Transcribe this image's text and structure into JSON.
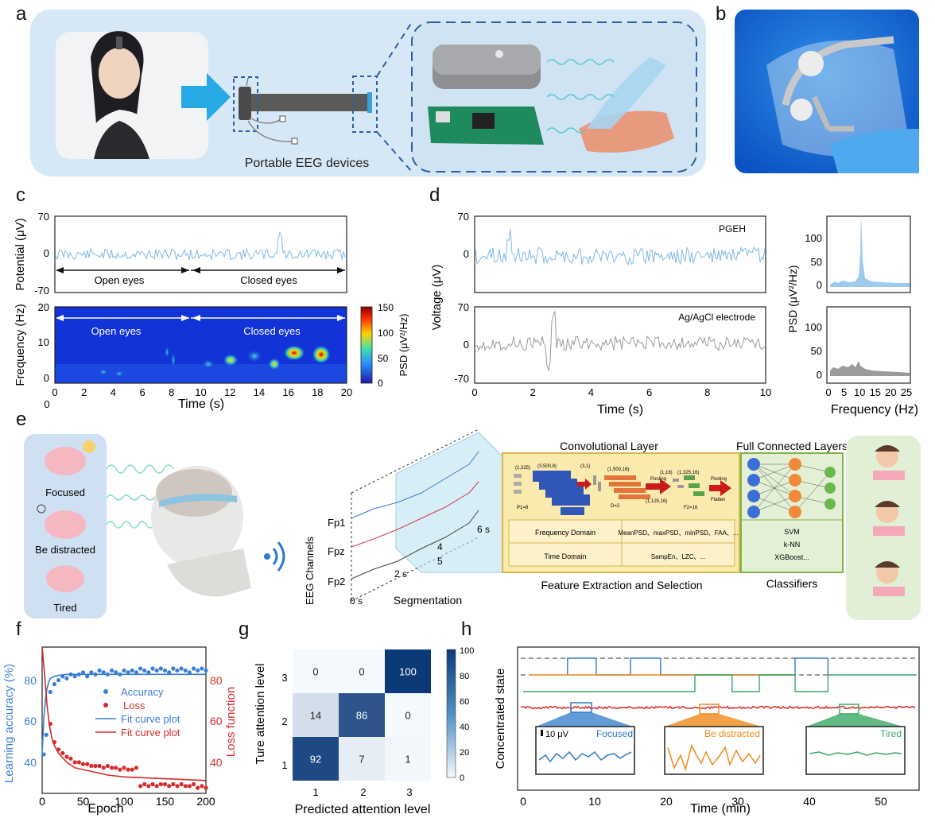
{
  "panel_labels": [
    "a",
    "b",
    "c",
    "d",
    "e",
    "f",
    "g",
    "h"
  ],
  "panel_a": {
    "caption": "Portable EEG devices"
  },
  "panel_c": {
    "top_ylabel": "Potential (μV)",
    "top_yticks": [
      "70",
      "0",
      "-70"
    ],
    "open_eyes": "Open eyes",
    "closed_eyes": "Closed eyes",
    "bottom_ylabel": "Frequency (Hz)",
    "bottom_yticks": [
      "20",
      "10",
      "0"
    ],
    "xticks": [
      "0",
      "2",
      "4",
      "6",
      "8",
      "10",
      "12",
      "14",
      "16",
      "18",
      "20"
    ],
    "extra_zero": "0",
    "xlabel": "Time (s)",
    "colorbar_label": "PSD (μV²/Hz)",
    "colorbar_ticks": [
      "150",
      "100",
      "50",
      "0"
    ]
  },
  "panel_d": {
    "ylabel": "Voltage (μV)",
    "yticks": [
      "70",
      "0",
      "-70"
    ],
    "top_label": "PGEH",
    "bottom_label": "Ag/AgCl electrode",
    "xticks": [
      "0",
      "2",
      "4",
      "6",
      "8",
      "10"
    ],
    "xlabel": "Time (s)",
    "psd_ylabel": "PSD (μV²/Hz)",
    "psd_yticks": [
      "100",
      "50",
      "0"
    ],
    "psd_xticks": [
      "0",
      "5",
      "10",
      "15",
      "20",
      "25"
    ],
    "psd_xlabel": "Frequency (Hz)"
  },
  "panel_e": {
    "states": [
      "Focused",
      "Be distracted",
      "Tired"
    ],
    "channels_label": "EEG Channels",
    "channels": [
      "Fp1",
      "Fpz",
      "Fp2"
    ],
    "seg_ticks": [
      "0 s",
      "2 s",
      "4",
      "5",
      "6 s"
    ],
    "segmentation": "Segmentation",
    "conv_title": "Convolutional Layer",
    "conv_dims": [
      "(1,325)",
      "(3,500,8)",
      "(3,1)",
      "(1,500,16)",
      "(1,16)",
      "(1,325,16)",
      "(1,125,16)",
      "P1=8",
      "D=2",
      "F2=16"
    ],
    "pooling": "Pooling",
    "flatten": "Flatten",
    "features": [
      {
        "domain": "Frequency Domain",
        "items": "MeanPSD、maxPSD、minPSD、FAA、..."
      },
      {
        "domain": "Time Domain",
        "items": "SampEn、LZC、..."
      }
    ],
    "feature_title": "Feature Extraction and Selection",
    "fc_title": "Full Connected Layers",
    "classifiers": [
      "SVM",
      "k-NN",
      "XGBoost..."
    ],
    "classifiers_title": "Classifiers"
  },
  "panel_f": {
    "ylabel_left": "Learning accuracy (%)",
    "ylabel_right": "Loss function",
    "yticks_left": [
      "80",
      "60",
      "40"
    ],
    "yticks_right": [
      "80",
      "60",
      "40"
    ],
    "xticks": [
      "0",
      "50",
      "100",
      "150",
      "200"
    ],
    "xlabel": "Epoch",
    "legend": [
      "Accuracy",
      "Loss",
      "Fit curve plot",
      "Fit curve plot"
    ],
    "colors": {
      "accuracy": "#3a7fd0",
      "loss": "#d62b2b"
    }
  },
  "panel_g": {
    "ylabel": "Ture attention level",
    "xlabel": "Predicted attention level",
    "yticks": [
      "3",
      "2",
      "1"
    ],
    "xticks": [
      "1",
      "2",
      "3"
    ],
    "colorbar_ticks": [
      "100",
      "80",
      "60",
      "40",
      "20",
      "0"
    ]
  },
  "panel_h": {
    "ylabel": "Concentrated state",
    "xlabel": "Time (min)",
    "xticks": [
      "0",
      "10",
      "20",
      "30",
      "40",
      "50"
    ],
    "scale": "10 μV",
    "insets": [
      {
        "label": "Focused",
        "color": "#2f7ac8"
      },
      {
        "label": "Be distracted",
        "color": "#f08a1c"
      },
      {
        "label": "Tired",
        "color": "#3aa865"
      }
    ]
  },
  "chart_data": [
    {
      "type": "line",
      "panel": "f",
      "xlabel": "Epoch",
      "ylabel": "Learning accuracy (%)",
      "y2label": "Loss function",
      "xlim": [
        0,
        200
      ],
      "ylim": [
        30,
        105
      ],
      "series": [
        {
          "name": "Accuracy",
          "axis": "left",
          "style": "scatter",
          "x": [
            2,
            5,
            10,
            15,
            20,
            25,
            30,
            35,
            40,
            45,
            50,
            55,
            60,
            65,
            70,
            75,
            80,
            85,
            90,
            95,
            100,
            105,
            110,
            115,
            120,
            125,
            130,
            135,
            140,
            145,
            150,
            155,
            160,
            165,
            170,
            175,
            180,
            185,
            190,
            195,
            200
          ],
          "y": [
            50,
            60,
            82,
            86,
            88,
            90,
            89,
            91,
            90,
            91,
            92,
            90,
            92,
            91,
            93,
            92,
            91,
            93,
            92,
            91,
            93,
            92,
            93,
            92,
            94,
            93,
            92,
            94,
            93,
            94,
            93,
            92,
            94,
            93,
            94,
            93,
            92,
            94,
            93,
            94,
            93
          ]
        },
        {
          "name": "Loss",
          "axis": "right",
          "style": "scatter",
          "x": [
            10,
            15,
            20,
            25,
            30,
            35,
            40,
            45,
            50,
            55,
            60,
            65,
            70,
            75,
            80,
            85,
            90,
            95,
            100,
            105,
            110,
            115,
            120,
            125,
            130,
            135,
            140,
            145,
            150,
            155,
            160,
            165,
            170,
            175,
            180,
            185,
            190,
            195,
            200
          ],
          "y": [
            58,
            48,
            44,
            42,
            40,
            39,
            37,
            37,
            36,
            36,
            35,
            35,
            35,
            34,
            35,
            34,
            34,
            33,
            34,
            33,
            33,
            34,
            24,
            25,
            24,
            25,
            24,
            25,
            25,
            24,
            25,
            24,
            25,
            24,
            24,
            25,
            23,
            24,
            23
          ]
        },
        {
          "name": "Fit curve plot",
          "axis": "left",
          "style": "line",
          "x": [
            0,
            2,
            4,
            6,
            8,
            10,
            15,
            20,
            30,
            50,
            100,
            150,
            200
          ],
          "y": [
            50,
            68,
            78,
            84,
            87,
            89,
            90,
            90.5,
            91,
            91,
            91,
            91,
            91
          ]
        },
        {
          "name": "Fit curve plot",
          "axis": "right",
          "style": "line",
          "x": [
            0,
            3,
            6,
            9,
            12,
            15,
            20,
            30,
            40,
            60,
            80,
            100,
            150,
            200
          ],
          "y": [
            100,
            85,
            68,
            57,
            50,
            46,
            42,
            37,
            34,
            32,
            30,
            29,
            28,
            27
          ]
        }
      ]
    },
    {
      "type": "heatmap",
      "panel": "g",
      "xlabel": "Predicted attention level",
      "ylabel": "Ture attention level",
      "x": [
        "1",
        "2",
        "3"
      ],
      "y": [
        "3",
        "2",
        "1"
      ],
      "values": [
        [
          0,
          0,
          100
        ],
        [
          14,
          86,
          0
        ],
        [
          92,
          7,
          1
        ]
      ],
      "zlim": [
        0,
        100
      ]
    },
    {
      "type": "line",
      "panel": "h",
      "xlabel": "Time (min)",
      "ylabel": "Concentrated state",
      "xlim": [
        0,
        55
      ],
      "series": [
        {
          "name": "Focused",
          "x": [
            6.2,
            6.2,
            10.2,
            10.2,
            15,
            15,
            19.2,
            19.2,
            38,
            38,
            42.6,
            42.6
          ],
          "y": [
            3,
            4,
            4,
            3,
            3,
            4,
            4,
            3,
            3,
            4,
            4,
            3
          ]
        },
        {
          "name": "Be distracted",
          "x": [
            1,
            1,
            6.2,
            6.2,
            10.2,
            10.2,
            15,
            15,
            24,
            24,
            29.2,
            29.2,
            33,
            33,
            38,
            38
          ],
          "y": [
            2,
            3,
            3,
            2,
            2,
            3,
            3,
            2,
            2,
            3,
            3,
            2,
            2,
            3,
            3,
            2
          ]
        },
        {
          "name": "Tired",
          "x": [
            0,
            24,
            24,
            29.2,
            29.2,
            33,
            33,
            38,
            38,
            42.6,
            42.6,
            55
          ],
          "y": [
            1,
            1,
            2,
            2,
            1,
            1,
            2,
            2,
            1,
            1,
            2,
            2
          ]
        }
      ]
    }
  ]
}
